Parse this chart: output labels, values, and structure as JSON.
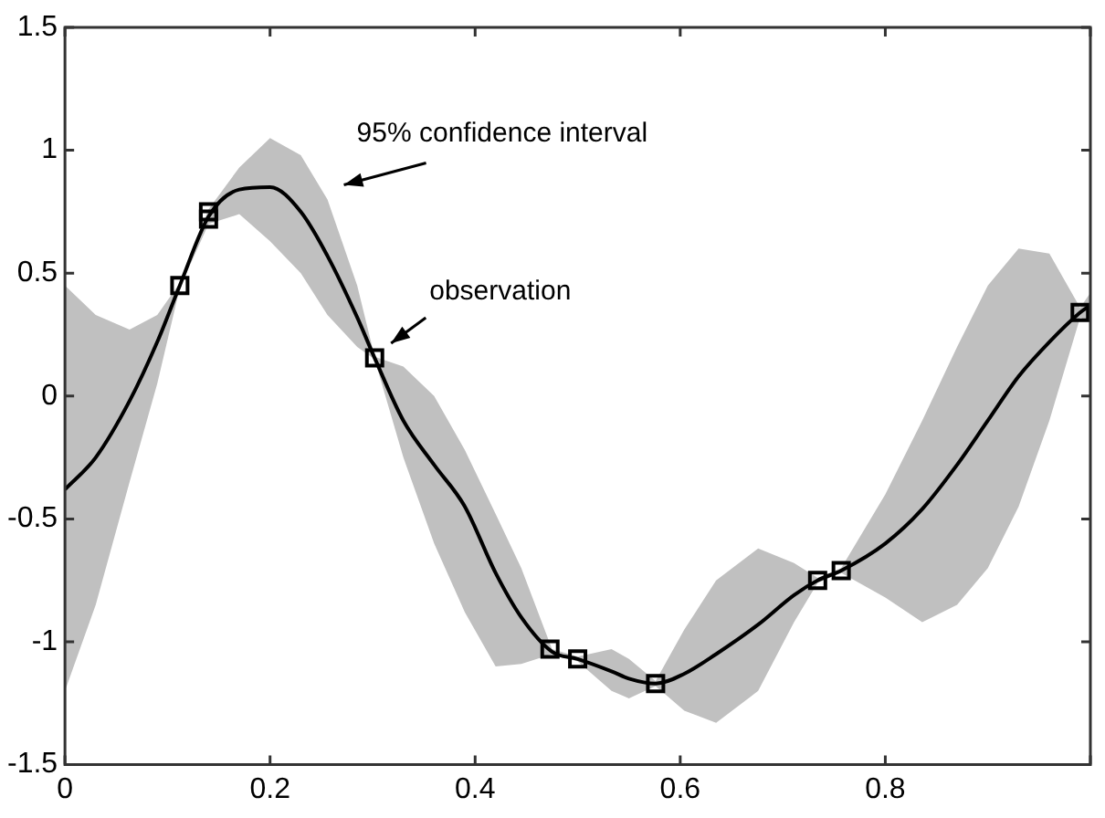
{
  "chart_data": {
    "type": "line",
    "xlim": [
      0,
      1
    ],
    "ylim": [
      -1.5,
      1.5
    ],
    "xticks": [
      0,
      0.2,
      0.4,
      0.6,
      0.8,
      {
        "value": 1,
        "label": null
      }
    ],
    "yticks": [
      -1.5,
      -1,
      -0.5,
      0,
      0.5,
      1,
      1.5
    ],
    "grid": false,
    "legend": false,
    "line_style": "solid",
    "series": [
      {
        "color": "#000000",
        "x": [
          0,
          0.03,
          0.063,
          0.09,
          0.112,
          0.14,
          0.17,
          0.2,
          0.23,
          0.256,
          0.285,
          0.302,
          0.33,
          0.36,
          0.39,
          0.42,
          0.445,
          0.475,
          0.5,
          0.533,
          0.55,
          0.576,
          0.604,
          0.635,
          0.676,
          0.711,
          0.734,
          0.757,
          0.8,
          0.836,
          0.87,
          0.9,
          0.93,
          0.96,
          0.99,
          1.0
        ],
        "values": [
          -0.38,
          -0.25,
          -0.02,
          0.22,
          0.45,
          0.73,
          0.84,
          0.85,
          0.75,
          0.57,
          0.32,
          0.155,
          -0.1,
          -0.28,
          -0.45,
          -0.72,
          -0.9,
          -1.04,
          -1.07,
          -1.12,
          -1.15,
          -1.17,
          -1.13,
          -1.05,
          -0.93,
          -0.81,
          -0.75,
          -0.71,
          -0.6,
          -0.46,
          -0.28,
          -0.1,
          0.08,
          0.22,
          0.34,
          0.37
        ],
        "lower": [
          -1.2,
          -0.85,
          -0.35,
          0.05,
          0.44,
          0.7,
          0.74,
          0.63,
          0.5,
          0.33,
          0.2,
          0.15,
          -0.25,
          -0.6,
          -0.88,
          -1.1,
          -1.09,
          -1.05,
          -1.08,
          -1.2,
          -1.23,
          -1.18,
          -1.28,
          -1.33,
          -1.2,
          -0.92,
          -0.76,
          -0.72,
          -0.82,
          -0.92,
          -0.85,
          -0.7,
          -0.45,
          -0.1,
          0.32,
          0.3
        ],
        "upper": [
          0.45,
          0.33,
          0.27,
          0.33,
          0.46,
          0.76,
          0.93,
          1.05,
          0.98,
          0.8,
          0.45,
          0.16,
          0.12,
          0.0,
          -0.22,
          -0.48,
          -0.7,
          -1.03,
          -1.06,
          -1.03,
          -1.07,
          -1.16,
          -0.95,
          -0.75,
          -0.62,
          -0.68,
          -0.74,
          -0.7,
          -0.4,
          -0.1,
          0.2,
          0.45,
          0.6,
          0.58,
          0.36,
          0.42
        ]
      },
      {
        "type": "scatter",
        "marker": "square",
        "color": "#000000",
        "x": [
          0.112,
          0.14,
          0.14,
          0.302,
          0.473,
          0.5,
          0.576,
          0.734,
          0.757,
          0.99
        ],
        "values": [
          0.45,
          0.75,
          0.72,
          0.155,
          -1.03,
          -1.07,
          -1.17,
          -0.75,
          -0.71,
          0.34
        ]
      }
    ],
    "annotations": [
      {
        "text": "95% confidence interval",
        "x": 0.256,
        "y": 0.8
      },
      {
        "text": "observation",
        "x": 0.302,
        "y": 0.155
      }
    ]
  }
}
